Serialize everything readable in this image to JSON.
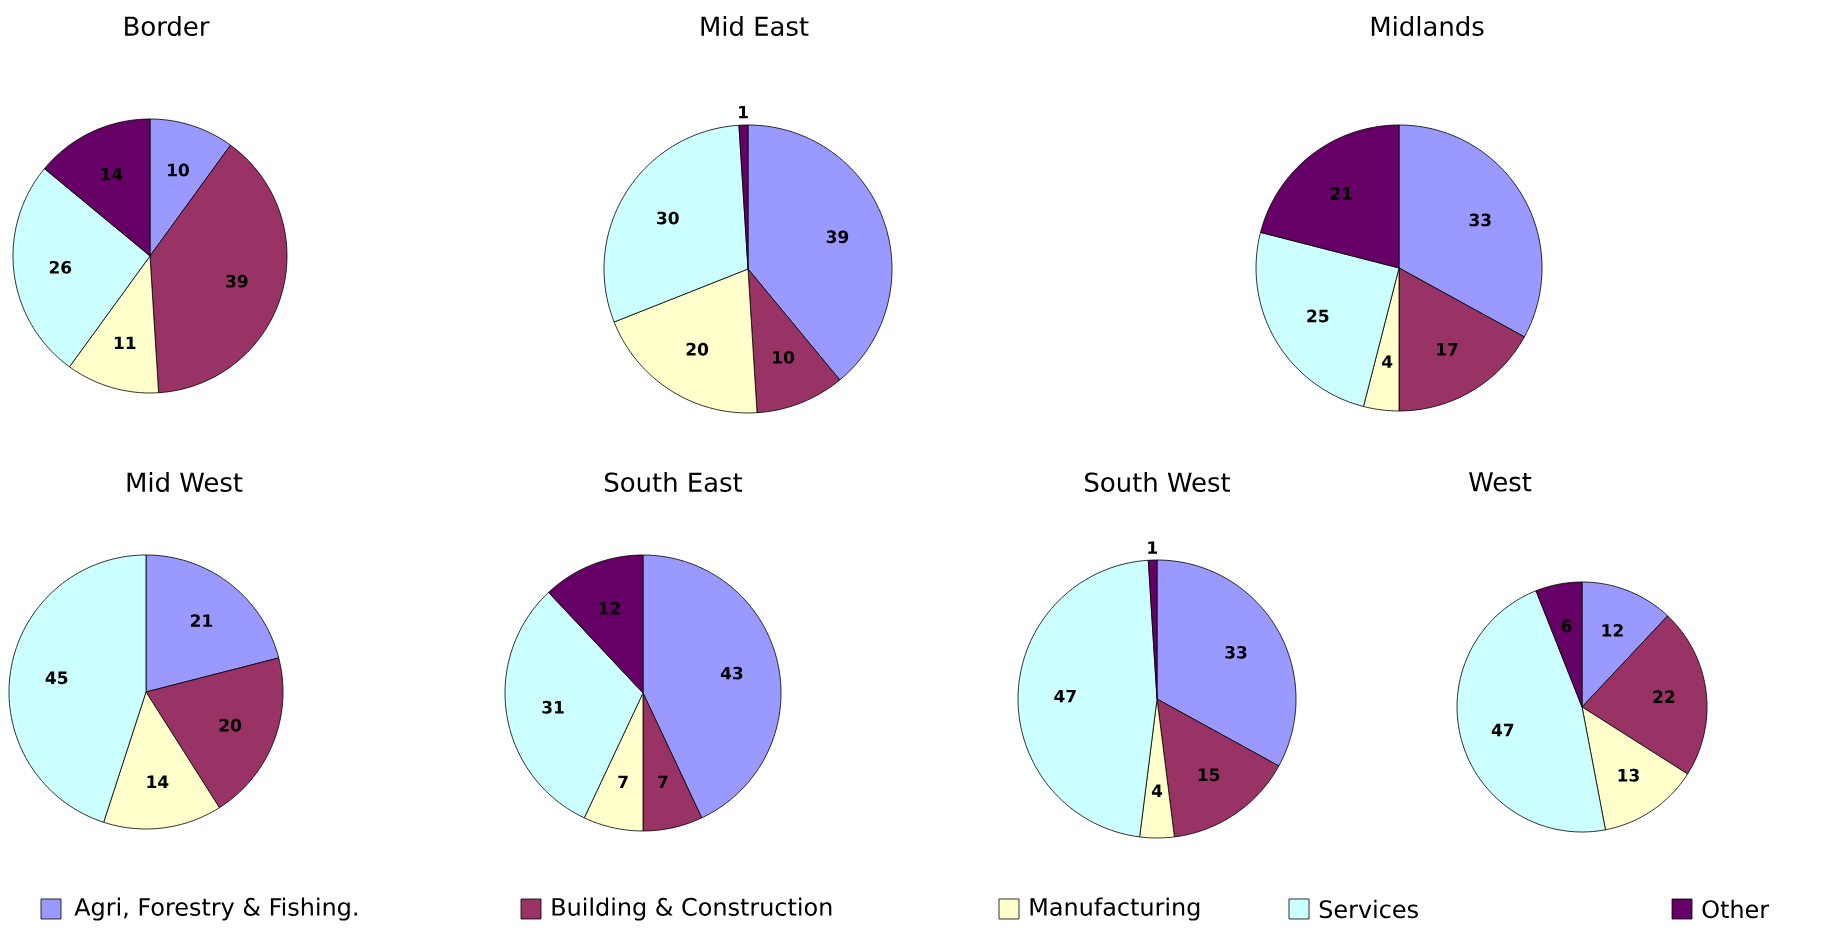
{
  "chart_data": [
    {
      "type": "pie",
      "title": "Border",
      "categories": [
        "Agri, Forestry & Fishing.",
        "Building & Construction",
        "Manufacturing",
        "Services",
        "Other"
      ],
      "values": [
        10,
        39,
        11,
        26,
        14
      ],
      "colors": [
        "#9999ff",
        "#993366",
        "#ffffcc",
        "#ccffff",
        "#660066"
      ],
      "data_labels": true,
      "legend": "bottom"
    },
    {
      "type": "pie",
      "title": "Mid East",
      "values": [
        39,
        10,
        20,
        30,
        1
      ],
      "colors": [
        "#9999ff",
        "#993366",
        "#ffffcc",
        "#ccffff",
        "#660066"
      ],
      "data_labels": true
    },
    {
      "type": "pie",
      "title": "Midlands",
      "values": [
        33,
        17,
        4,
        25,
        21
      ],
      "colors": [
        "#9999ff",
        "#993366",
        "#ffffcc",
        "#ccffff",
        "#660066"
      ],
      "data_labels": true
    },
    {
      "type": "pie",
      "title": "Mid West",
      "values": [
        21,
        20,
        14,
        45,
        null
      ],
      "colors": [
        "#9999ff",
        "#993366",
        "#ffffcc",
        "#ccffff",
        "#660066"
      ],
      "data_labels": true
    },
    {
      "type": "pie",
      "title": "South East",
      "values": [
        43,
        7,
        7,
        31,
        12
      ],
      "colors": [
        "#9999ff",
        "#993366",
        "#ffffcc",
        "#ccffff",
        "#660066"
      ],
      "data_labels": true
    },
    {
      "type": "pie",
      "title": "South West",
      "values": [
        33,
        15,
        4,
        47,
        1
      ],
      "colors": [
        "#9999ff",
        "#993366",
        "#ffffcc",
        "#ccffff",
        "#660066"
      ],
      "data_labels": true
    },
    {
      "type": "pie",
      "title": "West",
      "values": [
        12,
        22,
        13,
        47,
        6
      ],
      "colors": [
        "#9999ff",
        "#993366",
        "#ffffcc",
        "#ccffff",
        "#660066"
      ],
      "data_labels": true
    }
  ]
}
